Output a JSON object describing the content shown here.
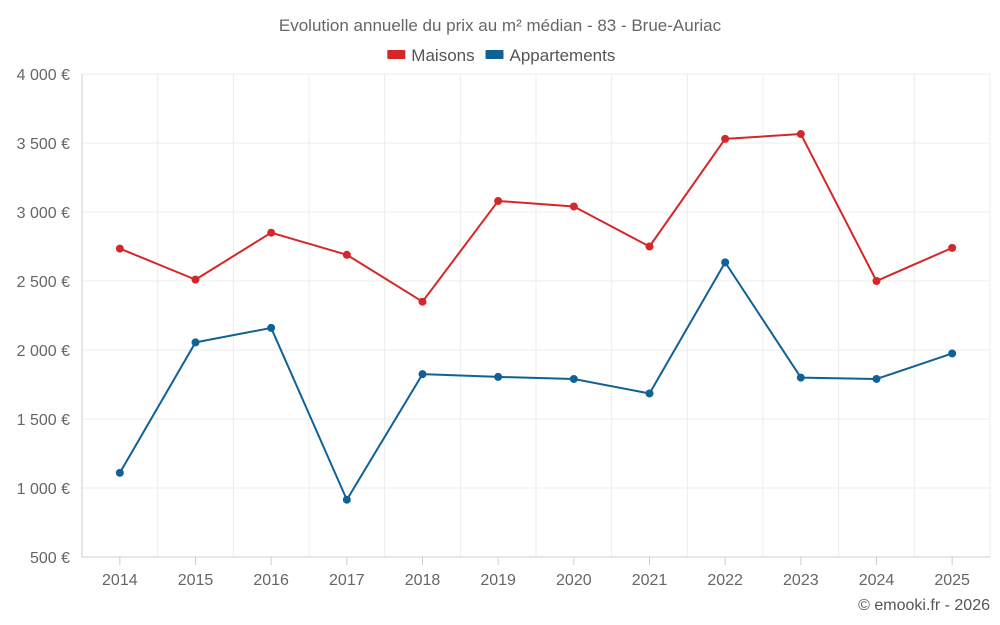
{
  "chart_data": {
    "type": "line",
    "title": "Evolution annuelle du prix au m² médian - 83 - Brue-Auriac",
    "categories": [
      "2014",
      "2015",
      "2016",
      "2017",
      "2018",
      "2019",
      "2020",
      "2021",
      "2022",
      "2023",
      "2024",
      "2025"
    ],
    "series": [
      {
        "name": "Maisons",
        "color": "#d62728",
        "values": [
          2735,
          2510,
          2850,
          2690,
          2350,
          3080,
          3040,
          2750,
          3530,
          3565,
          2500,
          2740
        ]
      },
      {
        "name": "Appartements",
        "color": "#0f6196",
        "values": [
          1110,
          2055,
          2160,
          915,
          1825,
          1805,
          1790,
          1685,
          2635,
          1800,
          1790,
          1975
        ]
      }
    ],
    "ylim": [
      500,
      4000
    ],
    "yticks": [
      500,
      1000,
      1500,
      2000,
      2500,
      3000,
      3500,
      4000
    ],
    "ytick_labels": [
      "500 €",
      "1 000 €",
      "1 500 €",
      "2 000 €",
      "2 500 €",
      "3 000 €",
      "3 500 €",
      "4 000 €"
    ],
    "xlabel": "",
    "ylabel": "",
    "grid": true,
    "legend": "top-center"
  },
  "credit": "© emooki.fr - 2026"
}
